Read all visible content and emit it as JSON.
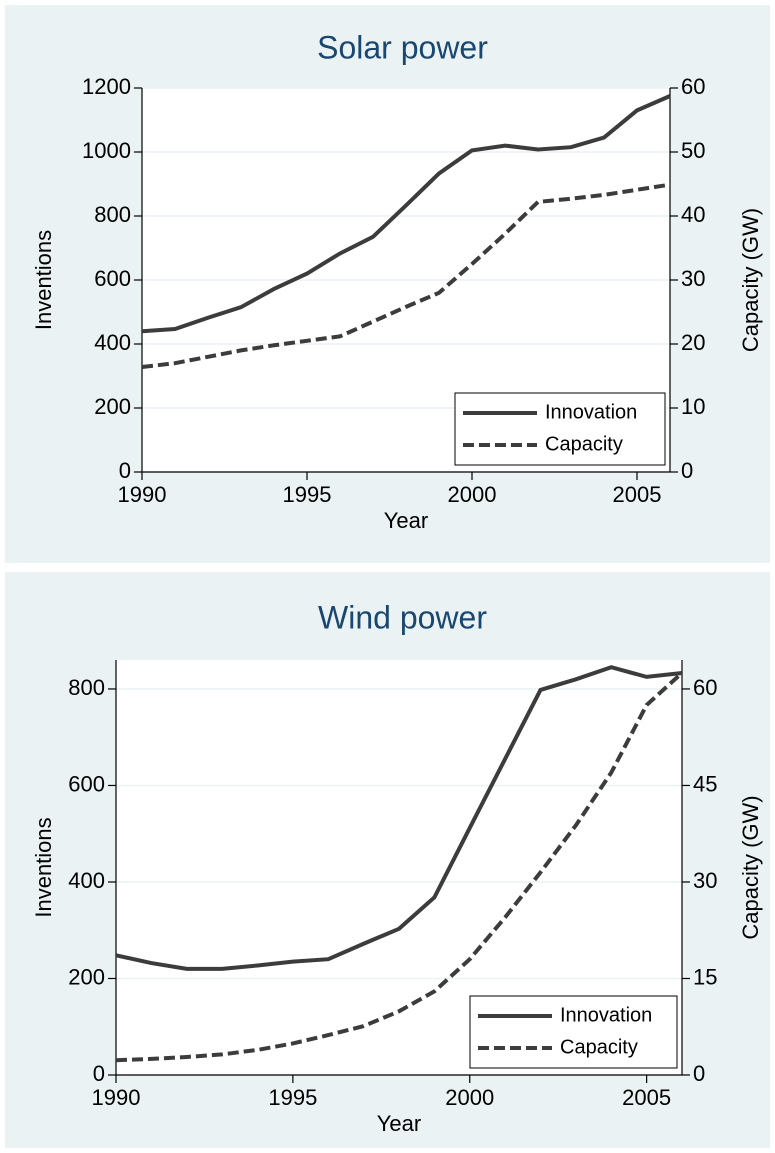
{
  "chart_data": [
    {
      "type": "line",
      "title": "Solar power",
      "x_label": "Year",
      "y_label": "Inventions",
      "y2_label": "Capacity (GW)",
      "x": [
        1990,
        1991,
        1992,
        1993,
        1994,
        1995,
        1996,
        1997,
        1998,
        1999,
        2000,
        2001,
        2002,
        2003,
        2004,
        2005,
        2006
      ],
      "xlim": [
        1990,
        2006
      ],
      "xticks": [
        1990,
        1995,
        2000,
        2005
      ],
      "ylim": [
        0,
        1200
      ],
      "yticks": [
        0,
        200,
        400,
        600,
        800,
        1000,
        1200
      ],
      "y2lim": [
        0,
        60
      ],
      "y2ticks": [
        0,
        10,
        20,
        30,
        40,
        50,
        60
      ],
      "grid": true,
      "legend": "lower right",
      "series": [
        {
          "name": "Innovation",
          "color": "#3c3c3c",
          "style": "solid",
          "values": [
            440,
            447,
            482,
            515,
            572,
            620,
            683,
            735,
            833,
            933,
            1005,
            1020,
            1008,
            1015,
            1045,
            1130,
            1175
          ]
        },
        {
          "name": "Capacity",
          "color": "#3c3c3c",
          "style": "dashed",
          "axis": "y2",
          "values": [
            16.4,
            17,
            18,
            19,
            19.8,
            20.5,
            21.2,
            23.5,
            25.8,
            28,
            32.5,
            37.2,
            42.2,
            42.7,
            43.3,
            44.1,
            44.9
          ]
        }
      ]
    },
    {
      "type": "line",
      "title": "Wind power",
      "x_label": "Year",
      "y_label": "Inventions",
      "y2_label": "Capacity (GW)",
      "x": [
        1990,
        1991,
        1992,
        1993,
        1994,
        1995,
        1996,
        1997,
        1998,
        1999,
        2000,
        2001,
        2002,
        2003,
        2004,
        2005,
        2006
      ],
      "xlim": [
        1990,
        2006
      ],
      "xticks": [
        1990,
        1995,
        2000,
        2005
      ],
      "ylim": [
        0,
        860
      ],
      "yticks": [
        0,
        200,
        400,
        600,
        800
      ],
      "y2lim": [
        0,
        64.5
      ],
      "y2ticks": [
        0,
        15,
        30,
        45,
        60
      ],
      "grid": true,
      "legend": "lower right",
      "series": [
        {
          "name": "Innovation",
          "color": "#3c3c3c",
          "style": "solid",
          "values": [
            248,
            232,
            220,
            220,
            227,
            235,
            240,
            272,
            303,
            368,
            512,
            655,
            798,
            820,
            845,
            825,
            833
          ]
        },
        {
          "name": "Capacity",
          "color": "#3c3c3c",
          "style": "dashed",
          "axis": "y2",
          "values": [
            2.3,
            2.5,
            2.8,
            3.2,
            3.9,
            4.9,
            6.2,
            7.6,
            9.9,
            13,
            18,
            24.5,
            31.5,
            38.8,
            47,
            57.5,
            62.5
          ]
        }
      ]
    }
  ]
}
